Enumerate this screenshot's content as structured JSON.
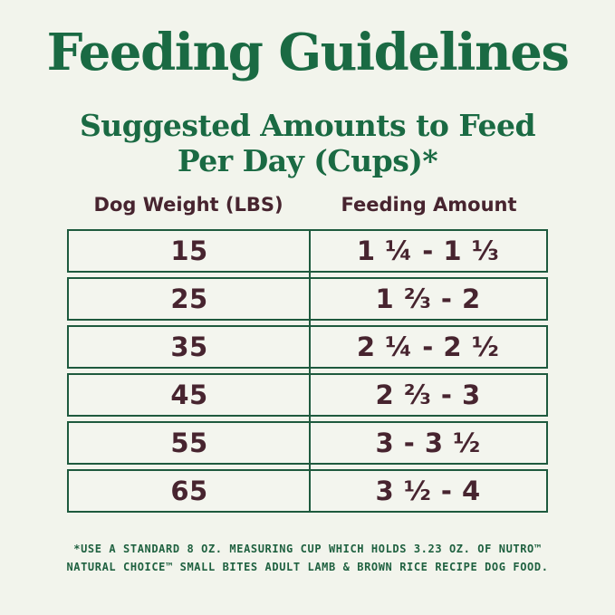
{
  "title": "Feeding Guidelines",
  "subtitle": {
    "line1": "Suggested Amounts to Feed",
    "line2": "Per Day (Cups)*"
  },
  "chart_data": {
    "type": "table",
    "title": "Feeding Guidelines",
    "subtitle": "Suggested Amounts to Feed Per Day (Cups)*",
    "columns": [
      "Dog Weight (LBS)",
      "Feeding Amount"
    ],
    "rows": [
      {
        "dog_weight_lbs": "15",
        "feeding_amount": "1 ¼ - 1 ⅓"
      },
      {
        "dog_weight_lbs": "25",
        "feeding_amount": "1 ⅔ - 2"
      },
      {
        "dog_weight_lbs": "35",
        "feeding_amount": "2 ¼ - 2 ½"
      },
      {
        "dog_weight_lbs": "45",
        "feeding_amount": "2 ⅔ - 3"
      },
      {
        "dog_weight_lbs": "55",
        "feeding_amount": "3 - 3 ½"
      },
      {
        "dog_weight_lbs": "65",
        "feeding_amount": "3 ½ - 4"
      }
    ],
    "footnote": "*USE A STANDARD 8 OZ. MEASURING CUP WHICH HOLDS 3.23 OZ. OF NUTRO™ NATURAL CHOICE™ SMALL BITES ADULT LAMB & BROWN RICE RECIPE DOG FOOD."
  },
  "footnote": {
    "line1": "*USE A STANDARD 8 OZ. MEASURING CUP WHICH HOLDS 3.23 OZ. OF NUTRO™",
    "line2": "NATURAL CHOICE™ SMALL BITES ADULT LAMB & BROWN RICE RECIPE DOG FOOD."
  },
  "colors": {
    "background": "#f2f4ec",
    "heading_green": "#1a6a43",
    "footnote_green": "#1f6140",
    "table_text_maroon": "#47242f",
    "table_border_green": "#1e5a3e"
  }
}
